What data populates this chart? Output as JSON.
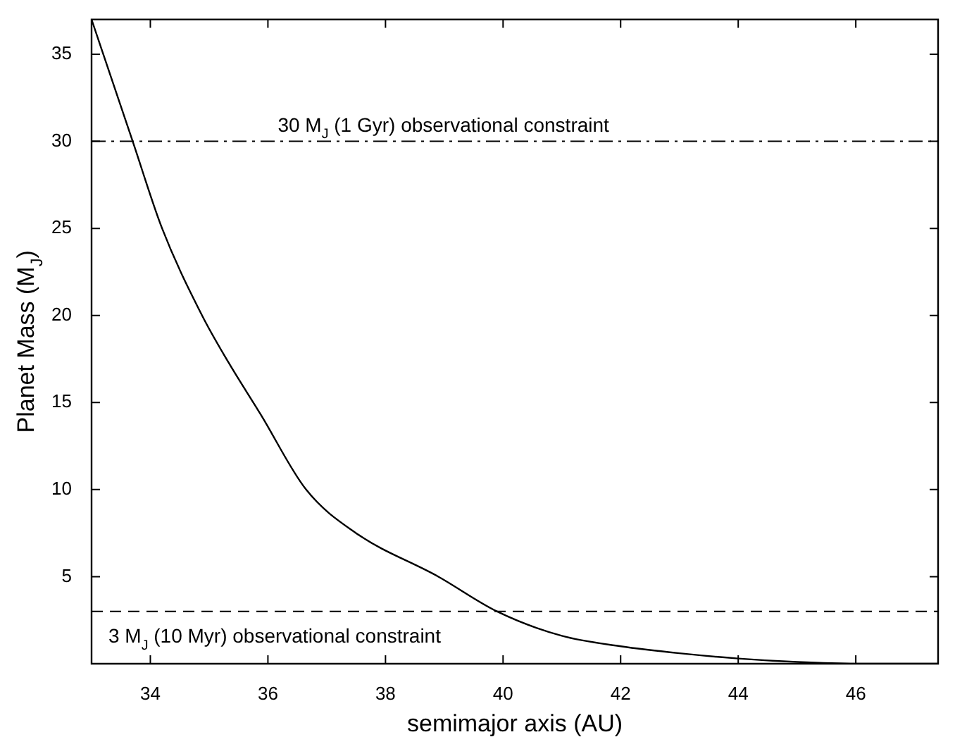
{
  "chart_data": {
    "type": "line",
    "xlabel": "semimajor axis (AU)",
    "ylabel": "Planet Mass (M$_{J}$)",
    "x": [
      33,
      33.35,
      33.7,
      34.2,
      34.88,
      35.33,
      35.88,
      36.65,
      37.5,
      38.9,
      39.9,
      41,
      42,
      43,
      44,
      45,
      46,
      47.4
    ],
    "series": [
      {
        "color": "#000000",
        "values": [
          37,
          33.5,
          30,
          25,
          20,
          17.3,
          14.3,
          10,
          7.5,
          5,
          3,
          1.6,
          1.0,
          0.6,
          0.3,
          0.1,
          0,
          0
        ]
      }
    ],
    "xlim": [
      33,
      47.4
    ],
    "xticks": [
      34,
      36,
      38,
      40,
      42,
      44,
      46
    ],
    "ylim": [
      0,
      37
    ],
    "yticks": [
      5,
      10,
      15,
      20,
      25,
      30,
      35
    ],
    "ref_lines": [
      {
        "axis": "y",
        "value": 30,
        "label": "30 M$_{J}$ (1 Gyr) observational constraint",
        "line_style": "dashdot"
      },
      {
        "axis": "y",
        "value": 3,
        "label": "3 M$_{J}$ (10 Myr) observational constraint",
        "line_style": "dashed"
      }
    ],
    "grid": false,
    "legend": false,
    "marker": "none",
    "line_style": "solid"
  }
}
